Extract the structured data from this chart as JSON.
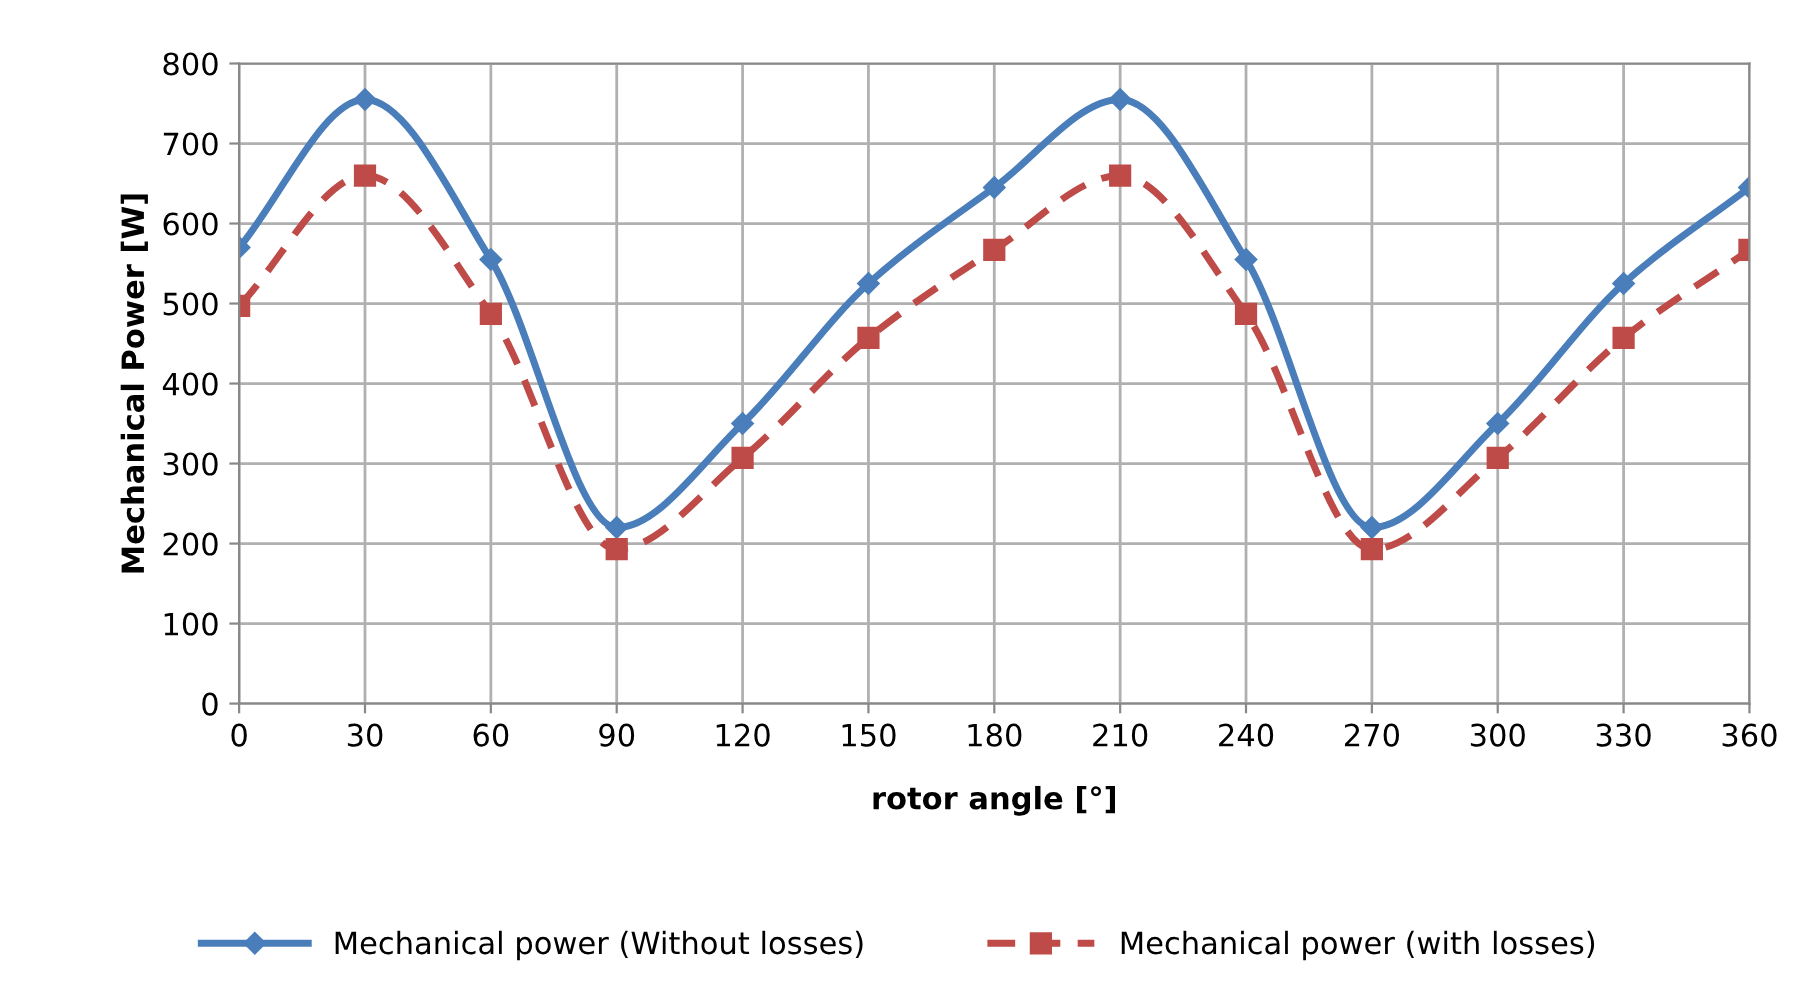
{
  "chart_data": {
    "type": "line",
    "xlabel": "rotor angle [°]",
    "ylabel": "Mechanical Power [W]",
    "x": [
      0,
      30,
      60,
      90,
      120,
      150,
      180,
      210,
      240,
      270,
      300,
      330,
      360
    ],
    "series": [
      {
        "name": "Mechanical power (Without losses)",
        "color": "#4a7ebb",
        "marker": "diamond",
        "line_style": "solid",
        "values": [
          570,
          755,
          555,
          220,
          350,
          525,
          645,
          755,
          555,
          220,
          350,
          525,
          645
        ]
      },
      {
        "name": "Mechanical power (with losses)",
        "color": "#be4b48",
        "marker": "square",
        "line_style": "dashed",
        "values": [
          497,
          660,
          487,
          193,
          307,
          457,
          567,
          660,
          487,
          193,
          307,
          457,
          567
        ]
      }
    ],
    "xlim": [
      0,
      360
    ],
    "xticks": [
      0,
      30,
      60,
      90,
      120,
      150,
      180,
      210,
      240,
      270,
      300,
      330,
      360
    ],
    "ylim": [
      0,
      800
    ],
    "yticks": [
      0,
      100,
      200,
      300,
      400,
      500,
      600,
      700,
      800
    ],
    "grid": true,
    "legend": "bottom"
  }
}
